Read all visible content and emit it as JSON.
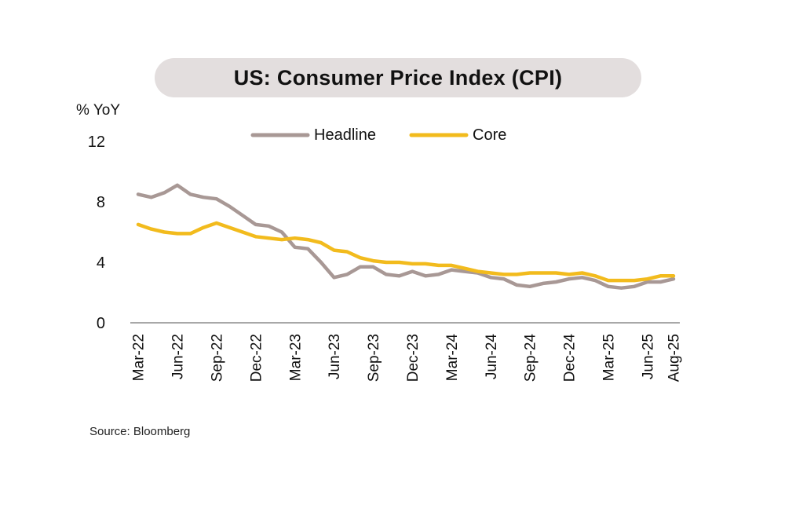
{
  "chart_data": {
    "type": "line",
    "title": "US: Consumer Price Index (CPI)",
    "ylabel": "% YoY",
    "xlabel": "",
    "ylim": [
      0,
      12
    ],
    "yticks": [
      0,
      4,
      8,
      12
    ],
    "source": "Source: Bloomberg",
    "legend_position": "top-center",
    "grid": false,
    "x": [
      "Mar-22",
      "Apr-22",
      "May-22",
      "Jun-22",
      "Jul-22",
      "Aug-22",
      "Sep-22",
      "Oct-22",
      "Nov-22",
      "Dec-22",
      "Jan-23",
      "Feb-23",
      "Mar-23",
      "Apr-23",
      "May-23",
      "Jun-23",
      "Jul-23",
      "Aug-23",
      "Sep-23",
      "Oct-23",
      "Nov-23",
      "Dec-23",
      "Jan-24",
      "Feb-24",
      "Mar-24",
      "Apr-24",
      "May-24",
      "Jun-24",
      "Jul-24",
      "Aug-24",
      "Sep-24",
      "Oct-24",
      "Nov-24",
      "Dec-24",
      "Jan-25",
      "Feb-25",
      "Mar-25",
      "Apr-25",
      "May-25",
      "Jun-25",
      "Jul-25",
      "Aug-25"
    ],
    "x_tick_labels": [
      "Mar-22",
      "Jun-22",
      "Sep-22",
      "Dec-22",
      "Mar-23",
      "Jun-23",
      "Sep-23",
      "Dec-23",
      "Mar-24",
      "Jun-24",
      "Sep-24",
      "Dec-24",
      "Mar-25",
      "Jun-25",
      "Aug-25"
    ],
    "series": [
      {
        "name": "Headline",
        "color": "#a89895",
        "values": [
          8.5,
          8.3,
          8.6,
          9.1,
          8.5,
          8.3,
          8.2,
          7.7,
          7.1,
          6.5,
          6.4,
          6.0,
          5.0,
          4.9,
          4.0,
          3.0,
          3.2,
          3.7,
          3.7,
          3.2,
          3.1,
          3.4,
          3.1,
          3.2,
          3.5,
          3.4,
          3.3,
          3.0,
          2.9,
          2.5,
          2.4,
          2.6,
          2.7,
          2.9,
          3.0,
          2.8,
          2.4,
          2.3,
          2.4,
          2.7,
          2.7,
          2.9
        ]
      },
      {
        "name": "Core",
        "color": "#f2bb1d",
        "values": [
          6.5,
          6.2,
          6.0,
          5.9,
          5.9,
          6.3,
          6.6,
          6.3,
          6.0,
          5.7,
          5.6,
          5.5,
          5.6,
          5.5,
          5.3,
          4.8,
          4.7,
          4.3,
          4.1,
          4.0,
          4.0,
          3.9,
          3.9,
          3.8,
          3.8,
          3.6,
          3.4,
          3.3,
          3.2,
          3.2,
          3.3,
          3.3,
          3.3,
          3.2,
          3.3,
          3.1,
          2.8,
          2.8,
          2.8,
          2.9,
          3.1,
          3.1
        ]
      }
    ]
  }
}
